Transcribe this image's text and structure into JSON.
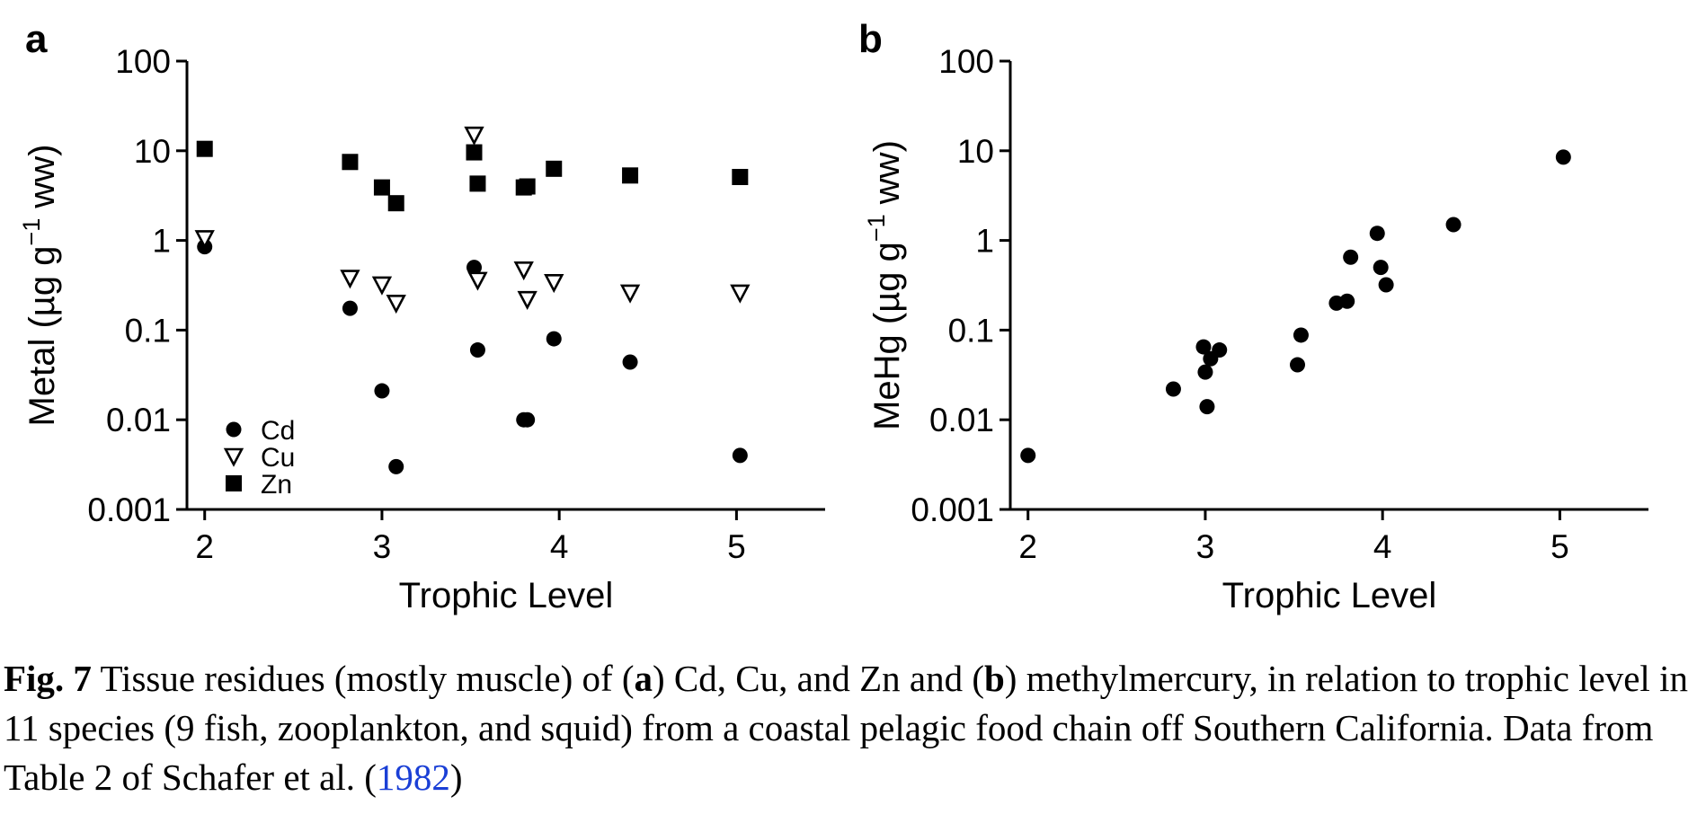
{
  "chart_data": [
    {
      "panel": "a",
      "type": "scatter",
      "xlabel": "Trophic Level",
      "ylabel_main": "Metal (µg g",
      "ylabel_sup": "−1",
      "ylabel_end": " ww)",
      "yscale": "log",
      "xlim": [
        1.9,
        5.5
      ],
      "ylim": [
        0.001,
        100
      ],
      "xticks": [
        "2",
        "3",
        "4",
        "5"
      ],
      "yticks": [
        "0.001",
        "0.01",
        "0.1",
        "1",
        "10",
        "100"
      ],
      "legend_position": "bottom-left",
      "series": [
        {
          "name": "Cd",
          "marker": "circle",
          "x": [
            2.0,
            2.82,
            3.0,
            3.08,
            3.52,
            3.54,
            3.8,
            3.82,
            3.97,
            4.4,
            5.02
          ],
          "y": [
            0.85,
            0.175,
            0.021,
            0.003,
            0.5,
            0.06,
            0.01,
            0.01,
            0.08,
            0.044,
            0.004
          ]
        },
        {
          "name": "Cu",
          "marker": "triangle-down",
          "x": [
            2.0,
            2.82,
            3.0,
            3.08,
            3.52,
            3.54,
            3.8,
            3.82,
            3.97,
            4.4,
            5.02
          ],
          "y": [
            1.05,
            0.38,
            0.32,
            0.2,
            15,
            0.36,
            0.47,
            0.22,
            0.34,
            0.26,
            0.26
          ]
        },
        {
          "name": "Zn",
          "marker": "square",
          "x": [
            2.0,
            2.82,
            3.0,
            3.08,
            3.52,
            3.54,
            3.8,
            3.82,
            3.97,
            4.4,
            5.02
          ],
          "y": [
            10.5,
            7.5,
            3.9,
            2.6,
            9.6,
            4.3,
            3.9,
            4.0,
            6.3,
            5.3,
            5.1
          ]
        }
      ]
    },
    {
      "panel": "b",
      "type": "scatter",
      "xlabel": "Trophic Level",
      "ylabel_main": "MeHg (µg g",
      "ylabel_sup": "−1",
      "ylabel_end": " ww)",
      "yscale": "log",
      "xlim": [
        1.9,
        5.5
      ],
      "ylim": [
        0.001,
        100
      ],
      "xticks": [
        "2",
        "3",
        "4",
        "5"
      ],
      "yticks": [
        "0.001",
        "0.01",
        "0.1",
        "1",
        "10",
        "100"
      ],
      "series": [
        {
          "name": "",
          "marker": "circle",
          "x": [
            2.0,
            2.82,
            2.99,
            3.0,
            3.01,
            3.03,
            3.08,
            3.52,
            3.54,
            3.74,
            3.8,
            3.82,
            3.97,
            3.99,
            4.02,
            4.4,
            5.02
          ],
          "y": [
            0.004,
            0.022,
            0.065,
            0.034,
            0.014,
            0.048,
            0.06,
            0.041,
            0.088,
            0.2,
            0.21,
            0.65,
            1.2,
            0.5,
            0.32,
            1.5,
            8.5
          ]
        }
      ]
    }
  ],
  "caption": {
    "fig_label": "Fig. 7",
    "t1": " Tissue residues (mostly muscle) of (",
    "a": "a",
    "t2": ") Cd, Cu, and Zn and (",
    "b": "b",
    "t3": ") methylmercury, in relation to trophic level in 11 species (9 fish, zooplankton, and squid) from a coastal pelagic food chain off Southern California. Data from Table 2 of Schafer et al. (",
    "ref": "1982",
    "t4": ")"
  }
}
